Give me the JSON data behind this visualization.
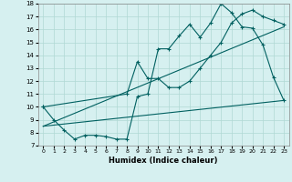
{
  "xlabel": "Humidex (Indice chaleur)",
  "bg_color": "#d6f0f0",
  "line_color": "#006060",
  "grid_color": "#b0d8d4",
  "xlim": [
    -0.5,
    23.5
  ],
  "ylim": [
    7,
    18
  ],
  "xticks": [
    0,
    1,
    2,
    3,
    4,
    5,
    6,
    7,
    8,
    9,
    10,
    11,
    12,
    13,
    14,
    15,
    16,
    17,
    18,
    19,
    20,
    21,
    22,
    23
  ],
  "yticks": [
    7,
    8,
    9,
    10,
    11,
    12,
    13,
    14,
    15,
    16,
    17,
    18
  ],
  "line1_x": [
    0,
    1,
    2,
    3,
    4,
    5,
    6,
    7,
    8,
    9,
    10,
    11,
    12,
    13,
    14,
    15,
    16,
    17,
    18,
    19,
    20,
    21,
    22,
    23
  ],
  "line1_y": [
    10,
    9,
    8.2,
    7.5,
    7.8,
    7.8,
    7.7,
    7.5,
    7.5,
    10.8,
    11.0,
    14.5,
    14.5,
    15.5,
    16.4,
    15.4,
    16.5,
    18,
    17.3,
    16.2,
    16.1,
    14.8,
    12.3,
    10.5
  ],
  "line2_x": [
    0,
    8,
    9,
    10,
    11,
    12,
    13,
    14,
    15,
    16,
    17,
    18,
    19,
    20,
    21,
    22,
    23
  ],
  "line2_y": [
    10,
    11.0,
    13.5,
    12.2,
    12.2,
    11.5,
    11.5,
    12.0,
    13.0,
    14.0,
    15.0,
    16.5,
    17.2,
    17.5,
    17.0,
    16.7,
    16.4
  ],
  "line3_x": [
    0,
    23
  ],
  "line3_y": [
    8.5,
    10.5
  ],
  "line4_x": [
    0,
    23
  ],
  "line4_y": [
    8.5,
    16.2
  ]
}
